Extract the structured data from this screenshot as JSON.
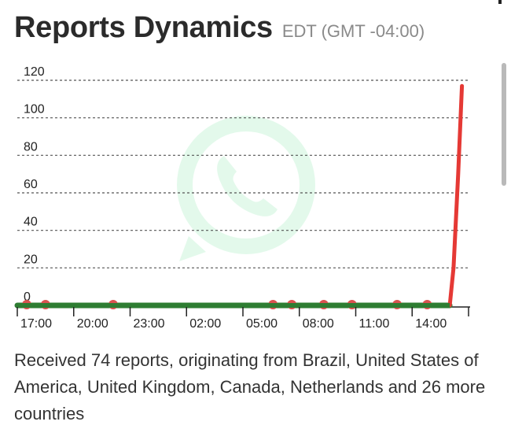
{
  "header": {
    "title": "Reports Dynamics",
    "timezone": "EDT (GMT -04:00)"
  },
  "summary": "Received 74 reports, originating from Brazil, United States of America, United Kingdom, Canada, Netherlands and 26 more countries",
  "colors": {
    "green_line": "#2e7d32",
    "red_line": "#e53935",
    "marker": "#d9534f",
    "gridline": "#555555",
    "watermark": "#25d366"
  },
  "watermark_icon": "whatsapp-logo-icon",
  "chart_data": {
    "type": "line",
    "title": "",
    "xlabel": "",
    "ylabel": "",
    "ylim": [
      0,
      120
    ],
    "y_ticks": [
      0,
      20,
      40,
      60,
      80,
      100,
      120
    ],
    "x_tick_labels": [
      "17:00",
      "20:00",
      "23:00",
      "02:00",
      "05:00",
      "08:00",
      "11:00",
      "14:00"
    ],
    "x_ticks_hours": [
      0,
      3,
      6,
      9,
      12,
      15,
      18,
      21
    ],
    "xlim_hours": [
      0,
      24
    ],
    "grid": true,
    "series": [
      {
        "color": "green",
        "x_hours": [
          0,
          23.0
        ],
        "values": [
          0,
          0
        ]
      },
      {
        "color": "red",
        "x_hours": [
          23.0,
          23.2,
          23.45,
          23.65
        ],
        "values": [
          0,
          20,
          70,
          117
        ]
      }
    ],
    "markers": {
      "x_hours": [
        0.5,
        1.5,
        5.1,
        13.6,
        14.6,
        16.3,
        17.8,
        20.2,
        21.8
      ],
      "values": [
        0,
        0,
        0,
        0,
        0,
        0,
        0,
        0,
        0
      ]
    }
  }
}
